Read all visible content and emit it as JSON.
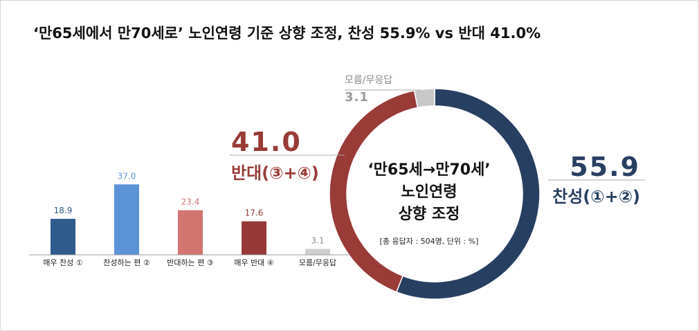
{
  "title": "‘만65세에서 만70세로’ 노인연령 기준 상향 조정, 찬성 55.9% vs 반대 41.0%",
  "colors": {
    "very_agree": "#2f5a8c",
    "agree": "#5b93d6",
    "disagree": "#d27570",
    "very_disagree": "#973a37",
    "unknown": "#cfcfcf",
    "donut_agree": "#273f61",
    "donut_disagree": "#993b37",
    "donut_unknown": "#c8c8c8"
  },
  "chart_data": [
    {
      "type": "bar",
      "categories": [
        "매우 찬성 ①",
        "찬성하는 편 ②",
        "반대하는 편 ③",
        "매우 반대 ④",
        "모름/무응답"
      ],
      "values": [
        18.9,
        37.0,
        23.4,
        17.6,
        3.1
      ],
      "value_labels": [
        "18.9",
        "37.0",
        "23.4",
        "17.6",
        "3.1"
      ],
      "ylim": [
        0,
        40
      ]
    },
    {
      "type": "pie",
      "donut": true,
      "center_text": [
        "‘만65세→만70세’",
        "노인연령",
        "상향 조정"
      ],
      "note": "[총 응답자 : 504명, 단위 : %]",
      "slices": [
        {
          "label": "찬성(①+②)",
          "value": 55.9,
          "value_label": "55.9"
        },
        {
          "label": "반대(③+④)",
          "value": 41.0,
          "value_label": "41.0"
        },
        {
          "label": "모름/무응답",
          "value": 3.1,
          "value_label": "3.1"
        }
      ]
    }
  ]
}
